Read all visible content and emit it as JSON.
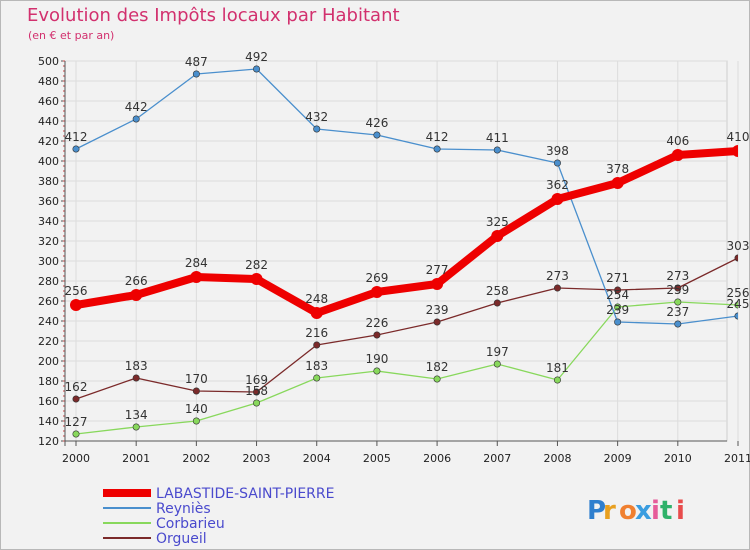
{
  "title": "Evolution des Impôts locaux par Habitant",
  "subtitle": "(en € et par an)",
  "logo_text": "Proxiti",
  "chart_data": {
    "type": "line",
    "title": "Evolution des Impôts locaux par Habitant",
    "subtitle": "(en € et par an)",
    "xlabel": "",
    "ylabel": "",
    "x": [
      2000,
      2001,
      2002,
      2003,
      2004,
      2005,
      2006,
      2007,
      2008,
      2009,
      2010,
      2011
    ],
    "ylim": [
      120,
      500
    ],
    "yticks": [
      120,
      140,
      160,
      180,
      200,
      220,
      240,
      260,
      280,
      300,
      320,
      340,
      360,
      380,
      400,
      420,
      440,
      460,
      480,
      500
    ],
    "grid": true,
    "legend_position": "bottom-left",
    "series": [
      {
        "name": "LABASTIDE-SAINT-PIERRE",
        "color": "#ee0000",
        "values": [
          256,
          266,
          284,
          282,
          248,
          269,
          277,
          325,
          362,
          378,
          406,
          410
        ]
      },
      {
        "name": "Reyniès",
        "color": "#4a8fcd",
        "values": [
          412,
          442,
          487,
          492,
          432,
          426,
          412,
          411,
          398,
          239,
          237,
          245
        ]
      },
      {
        "name": "Corbarieu",
        "color": "#88d85c",
        "values": [
          127,
          134,
          140,
          158,
          183,
          190,
          182,
          197,
          181,
          254,
          259,
          256
        ]
      },
      {
        "name": "Orgueil",
        "color": "#7b2a2a",
        "values": [
          162,
          183,
          170,
          169,
          216,
          226,
          239,
          258,
          273,
          271,
          273,
          303
        ]
      }
    ],
    "data_labels": [
      [
        "256",
        "266",
        "284",
        "282",
        "248",
        "269",
        "277",
        "325",
        "362",
        "378",
        "406",
        "410"
      ],
      [
        "412",
        "442",
        "487",
        "492",
        "432",
        "426",
        "412",
        "411",
        "398",
        "239",
        "237",
        "245"
      ],
      [
        "127",
        "134",
        "140",
        "158",
        "183",
        "190",
        "182",
        "197",
        "181",
        "254",
        "259",
        "256"
      ],
      [
        "162",
        "183",
        "170",
        "169",
        "216",
        "226",
        "239",
        "258",
        "273",
        "271",
        "273",
        "303"
      ]
    ]
  }
}
